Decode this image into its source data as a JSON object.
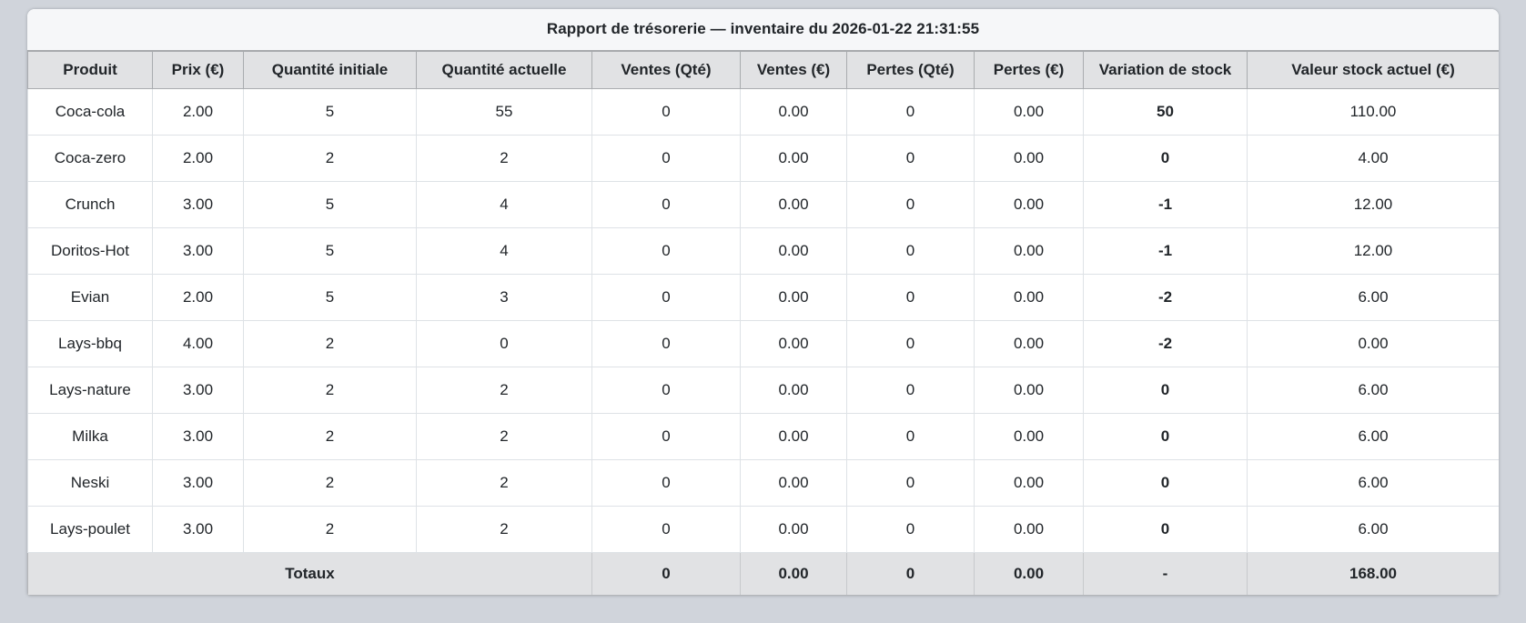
{
  "report": {
    "title": "Rapport de trésorerie — inventaire du 2026-01-22 21:31:55"
  },
  "table": {
    "headers": [
      "Produit",
      "Prix (€)",
      "Quantité initiale",
      "Quantité actuelle",
      "Ventes (Qté)",
      "Ventes (€)",
      "Pertes (Qté)",
      "Pertes (€)",
      "Variation de stock",
      "Valeur stock actuel (€)"
    ],
    "rows": [
      [
        "Coca-cola",
        "2.00",
        "5",
        "55",
        "0",
        "0.00",
        "0",
        "0.00",
        "50",
        "110.00"
      ],
      [
        "Coca-zero",
        "2.00",
        "2",
        "2",
        "0",
        "0.00",
        "0",
        "0.00",
        "0",
        "4.00"
      ],
      [
        "Crunch",
        "3.00",
        "5",
        "4",
        "0",
        "0.00",
        "0",
        "0.00",
        "-1",
        "12.00"
      ],
      [
        "Doritos-Hot",
        "3.00",
        "5",
        "4",
        "0",
        "0.00",
        "0",
        "0.00",
        "-1",
        "12.00"
      ],
      [
        "Evian",
        "2.00",
        "5",
        "3",
        "0",
        "0.00",
        "0",
        "0.00",
        "-2",
        "6.00"
      ],
      [
        "Lays-bbq",
        "4.00",
        "2",
        "0",
        "0",
        "0.00",
        "0",
        "0.00",
        "-2",
        "0.00"
      ],
      [
        "Lays-nature",
        "3.00",
        "2",
        "2",
        "0",
        "0.00",
        "0",
        "0.00",
        "0",
        "6.00"
      ],
      [
        "Milka",
        "3.00",
        "2",
        "2",
        "0",
        "0.00",
        "0",
        "0.00",
        "0",
        "6.00"
      ],
      [
        "Neski",
        "3.00",
        "2",
        "2",
        "0",
        "0.00",
        "0",
        "0.00",
        "0",
        "6.00"
      ],
      [
        "Lays-poulet",
        "3.00",
        "2",
        "2",
        "0",
        "0.00",
        "0",
        "0.00",
        "0",
        "6.00"
      ]
    ],
    "totals": {
      "label": "Totaux",
      "values": [
        "0",
        "0.00",
        "0",
        "0.00",
        "-",
        "168.00"
      ]
    }
  },
  "colors": {
    "page_bg": "#d0d4db",
    "card_bg": "#ffffff",
    "title_bg": "#f6f7f9",
    "header_bg": "#e1e2e4",
    "totals_bg": "#e1e2e4",
    "row_border": "#dee2e6",
    "header_border": "#a9acaf",
    "text": "#212529"
  }
}
